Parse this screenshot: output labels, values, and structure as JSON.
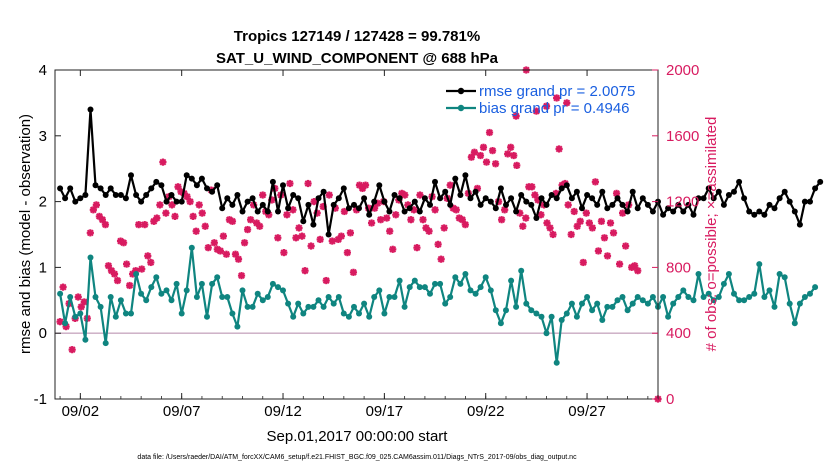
{
  "chart_data": {
    "type": "line",
    "title": "Tropics 127149 / 127428 = 99.781%",
    "subtitle": "SAT_U_WIND_COMPONENT @ 688 hPa",
    "xlabel": "Sep.01,2017 00:00:00 start",
    "ylabel": "rmse and bias (model - observation)",
    "y2label": "# of obs: o=possible; ×=assimilated",
    "footnote": "data file: /Users/raeder/DAI/ATM_forcXX/CAM6_setup/f.e21.FHIST_BGC.f09_025.CAM6assim.011/Diags_NTrS_2017-09/obs_diag_output.nc",
    "xlim": [
      0.75,
      30.5
    ],
    "ylim": [
      -1,
      4
    ],
    "y2lim": [
      0,
      2000
    ],
    "xticks": [
      {
        "pos": 2,
        "label": "09/02"
      },
      {
        "pos": 7,
        "label": "09/07"
      },
      {
        "pos": 12,
        "label": "09/12"
      },
      {
        "pos": 17,
        "label": "09/17"
      },
      {
        "pos": 22,
        "label": "09/22"
      },
      {
        "pos": 27,
        "label": "09/27"
      }
    ],
    "yticks": [
      "-1",
      "0",
      "1",
      "2",
      "3",
      "4"
    ],
    "y2ticks": [
      "0",
      "400",
      "800",
      "1200",
      "1600",
      "2000"
    ],
    "legend": {
      "location": "top-right",
      "entries": [
        "rmse grand pr = 2.0075",
        "bias grand pr = 0.4946"
      ]
    },
    "colors": {
      "rmse": "#000000",
      "bias": "#0f8580",
      "nobs": "#d81b60",
      "zero_line": "#c8a8c0",
      "legend_text": "#1a5fe0"
    },
    "x_start": 1.0,
    "x_step": 0.25,
    "series": [
      {
        "name": "rmse",
        "axis": "left",
        "values": [
          2.2,
          2.05,
          2.2,
          2.0,
          2.05,
          2.1,
          3.4,
          2.25,
          2.2,
          2.1,
          2.2,
          2.1,
          2.1,
          2.05,
          2.4,
          2.1,
          2.0,
          2.1,
          2.2,
          2.3,
          2.25,
          2.0,
          2.1,
          2.0,
          2.0,
          2.4,
          2.35,
          2.25,
          2.35,
          2.2,
          2.15,
          2.25,
          1.9,
          2.05,
          1.95,
          2.1,
          1.85,
          2.0,
          2.05,
          1.85,
          1.95,
          1.85,
          2.3,
          1.85,
          2.25,
          1.9,
          2.1,
          2.05,
          1.7,
          1.95,
          1.65,
          2.05,
          2.15,
          1.5,
          1.95,
          2.05,
          2.2,
          1.9,
          1.95,
          1.9,
          2.05,
          1.8,
          2.0,
          2.25,
          2.0,
          1.85,
          2.1,
          2.05,
          1.85,
          1.9,
          2.0,
          1.85,
          2.05,
          1.95,
          2.3,
          2.05,
          2.15,
          1.95,
          2.35,
          2.1,
          2.4,
          2.05,
          2.15,
          1.95,
          2.05,
          2.0,
          1.9,
          2.2,
          1.95,
          2.05,
          1.85,
          2.1,
          2.0,
          1.95,
          1.75,
          2.05,
          1.95,
          2.1,
          2.05,
          2.2,
          2.25,
          2.05,
          2.15,
          1.9,
          2.1,
          2.05,
          1.95,
          2.15,
          1.9,
          1.95,
          2.05,
          1.95,
          1.85,
          2.15,
          1.9,
          2.05,
          1.95,
          1.85,
          2.0,
          1.8,
          1.9,
          1.85,
          1.95,
          1.85,
          1.95,
          1.8,
          2.05,
          2.05,
          2.2,
          2.05,
          2.15,
          1.95,
          2.1,
          2.15,
          2.3,
          2.05,
          1.85,
          1.8,
          1.85,
          1.8,
          1.95,
          1.9,
          2.05,
          2.15,
          2.0,
          1.85,
          1.65,
          2.0,
          2.0,
          2.2,
          2.3
        ]
      },
      {
        "name": "bias",
        "axis": "left",
        "values": [
          0.6,
          0.15,
          0.55,
          0.25,
          0.3,
          -0.1,
          1.15,
          0.55,
          0.4,
          -0.15,
          0.55,
          0.25,
          0.5,
          0.3,
          0.3,
          0.9,
          0.6,
          0.5,
          0.7,
          0.85,
          0.6,
          0.65,
          0.5,
          0.75,
          0.3,
          0.65,
          1.3,
          0.55,
          0.75,
          0.25,
          0.75,
          0.85,
          0.55,
          0.55,
          0.3,
          0.1,
          0.65,
          0.4,
          0.4,
          0.6,
          0.5,
          0.55,
          0.75,
          0.7,
          0.65,
          0.45,
          0.25,
          0.45,
          0.3,
          0.4,
          0.4,
          0.5,
          0.4,
          0.55,
          0.45,
          0.55,
          0.3,
          0.25,
          0.4,
          0.3,
          0.45,
          0.25,
          0.55,
          0.65,
          0.3,
          0.55,
          0.55,
          0.8,
          0.4,
          0.7,
          0.8,
          0.7,
          0.7,
          0.6,
          0.75,
          0.75,
          0.45,
          0.55,
          0.85,
          0.75,
          0.9,
          0.65,
          0.6,
          0.7,
          0.85,
          0.65,
          0.35,
          0.15,
          0.35,
          0.8,
          0.4,
          0.95,
          0.45,
          0.35,
          0.3,
          0.25,
          0.0,
          0.25,
          -0.45,
          0.2,
          0.3,
          0.45,
          0.25,
          0.45,
          0.55,
          0.35,
          0.45,
          0.2,
          0.4,
          0.4,
          0.5,
          0.55,
          0.35,
          0.45,
          0.55,
          0.5,
          0.45,
          0.55,
          0.4,
          0.55,
          0.25,
          0.45,
          0.55,
          0.65,
          0.55,
          0.5,
          0.9,
          0.55,
          0.6,
          0.5,
          0.55,
          0.75,
          0.9,
          0.6,
          0.5,
          0.5,
          0.55,
          0.6,
          1.05,
          0.55,
          0.65,
          0.4,
          0.9,
          0.85,
          0.45,
          0.15,
          0.45,
          0.55,
          0.6,
          0.7
        ]
      },
      {
        "name": "nobs",
        "axis": "right",
        "values": [
          470,
          680,
          440,
          580,
          300,
          490,
          620,
          560,
          590,
          490,
          1010,
          1150,
          1180,
          1110,
          1090,
          1060,
          810,
          780,
          760,
          720,
          960,
          950,
          820,
          690,
          760,
          780,
          1060,
          790,
          1060,
          870,
          830,
          1080,
          1100,
          1180,
          1440,
          1130,
          1230,
          1180,
          1110,
          1290,
          1260,
          1250,
          1230,
          1200,
          1110,
          1020,
          1180,
          1130,
          1050,
          920,
          1270,
          950,
          910,
          900,
          990,
          880,
          1090,
          1080,
          880,
          850,
          750,
          950,
          1030,
          1090,
          1180,
          1070,
          1050,
          1240,
          1140,
          1120,
          1210,
          1280,
          980,
          1240,
          890,
          1120,
          1310,
          1150,
          980,
          1040,
          990,
          780,
          1310,
          930,
          1200,
          1130,
          970,
          1170,
          720,
          1240,
          960,
          1160,
          970,
          990,
          1140,
          890,
          1010,
          770,
          1150,
          1300,
          1280,
          1300,
          1160,
          1070,
          1160,
          1190,
          1090,
          1200,
          1100,
          1020,
          910,
          1120,
          1210,
          1250,
          1240,
          1180,
          1090,
          1150,
          920,
          1240,
          1090,
          1040,
          1020,
          1230,
          1150,
          940,
          850,
          1040,
          1220,
          1300,
          1160,
          1150,
          1100,
          1090,
          1060,
          1250,
          1470,
          1500,
          1280,
          1480,
          1530,
          1440,
          1620,
          1510,
          1430,
          1200,
          1090,
          1150,
          1490,
          1530,
          1480,
          1420,
          1130,
          1050,
          1100,
          1290,
          1290,
          1240,
          1210,
          1120,
          1180,
          1070,
          1040,
          1000,
          1250,
          1520,
          1300,
          1310,
          1180,
          1000,
          1140,
          1050,
          1080,
          830,
          1130,
          1070,
          1040,
          1320,
          900,
          1080,
          980,
          870,
          1070,
          1010,
          1250,
          820,
          1130,
          930,
          1180,
          800,
          810,
          780
        ]
      },
      {
        "name": "nobs_extra",
        "axis": "right",
        "label": "high off-grid points",
        "points": [
          [
            24,
            2000
          ],
          [
            24.5,
            1750
          ],
          [
            25,
            1780
          ],
          [
            25.5,
            1830
          ],
          [
            26,
            1800
          ],
          [
            23.5,
            1720
          ],
          [
            30.5,
            0
          ]
        ]
      }
    ]
  }
}
